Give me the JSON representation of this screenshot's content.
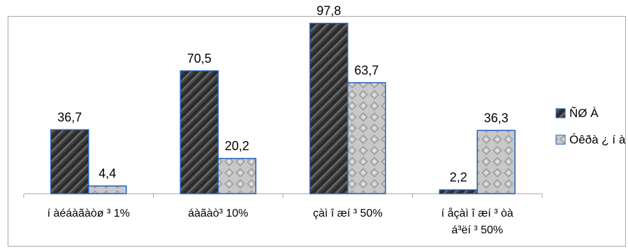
{
  "chart_data": {
    "type": "bar",
    "categories": [
      "í àéáàãàòø ³ 1%",
      "áàãàò³ 10%",
      "çàì î æí ³ 50%",
      "í åçàì î æí ³ òà á³ëí ³ 50%"
    ],
    "category_lines": [
      [
        "í àéáàãàòø ³ 1%"
      ],
      [
        "áàãàò³ 10%"
      ],
      [
        "çàì î æí ³ 50%"
      ],
      [
        "í åçàì î æí ³ òà",
        "á³ëí ³ 50%"
      ]
    ],
    "series": [
      {
        "name": "ÑØ À",
        "values": [
          36.7,
          70.5,
          97.8,
          2.2
        ],
        "labels": [
          "36,7",
          "70,5",
          "97,8",
          "2,2"
        ],
        "pattern": "diagonal-dark"
      },
      {
        "name": "Óêðà ¿ í à",
        "values": [
          4.4,
          20.2,
          63.7,
          36.3
        ],
        "labels": [
          "4,4",
          "20,2",
          "63,7",
          "36,3"
        ],
        "pattern": "diamond-light"
      }
    ],
    "ylim": [
      0,
      100
    ],
    "grid": false,
    "legend": "right",
    "colors": {
      "border": "#1f5fbf",
      "dark": "#404040",
      "light": "#bfbfbf",
      "axis": "#a6a6a6"
    }
  }
}
